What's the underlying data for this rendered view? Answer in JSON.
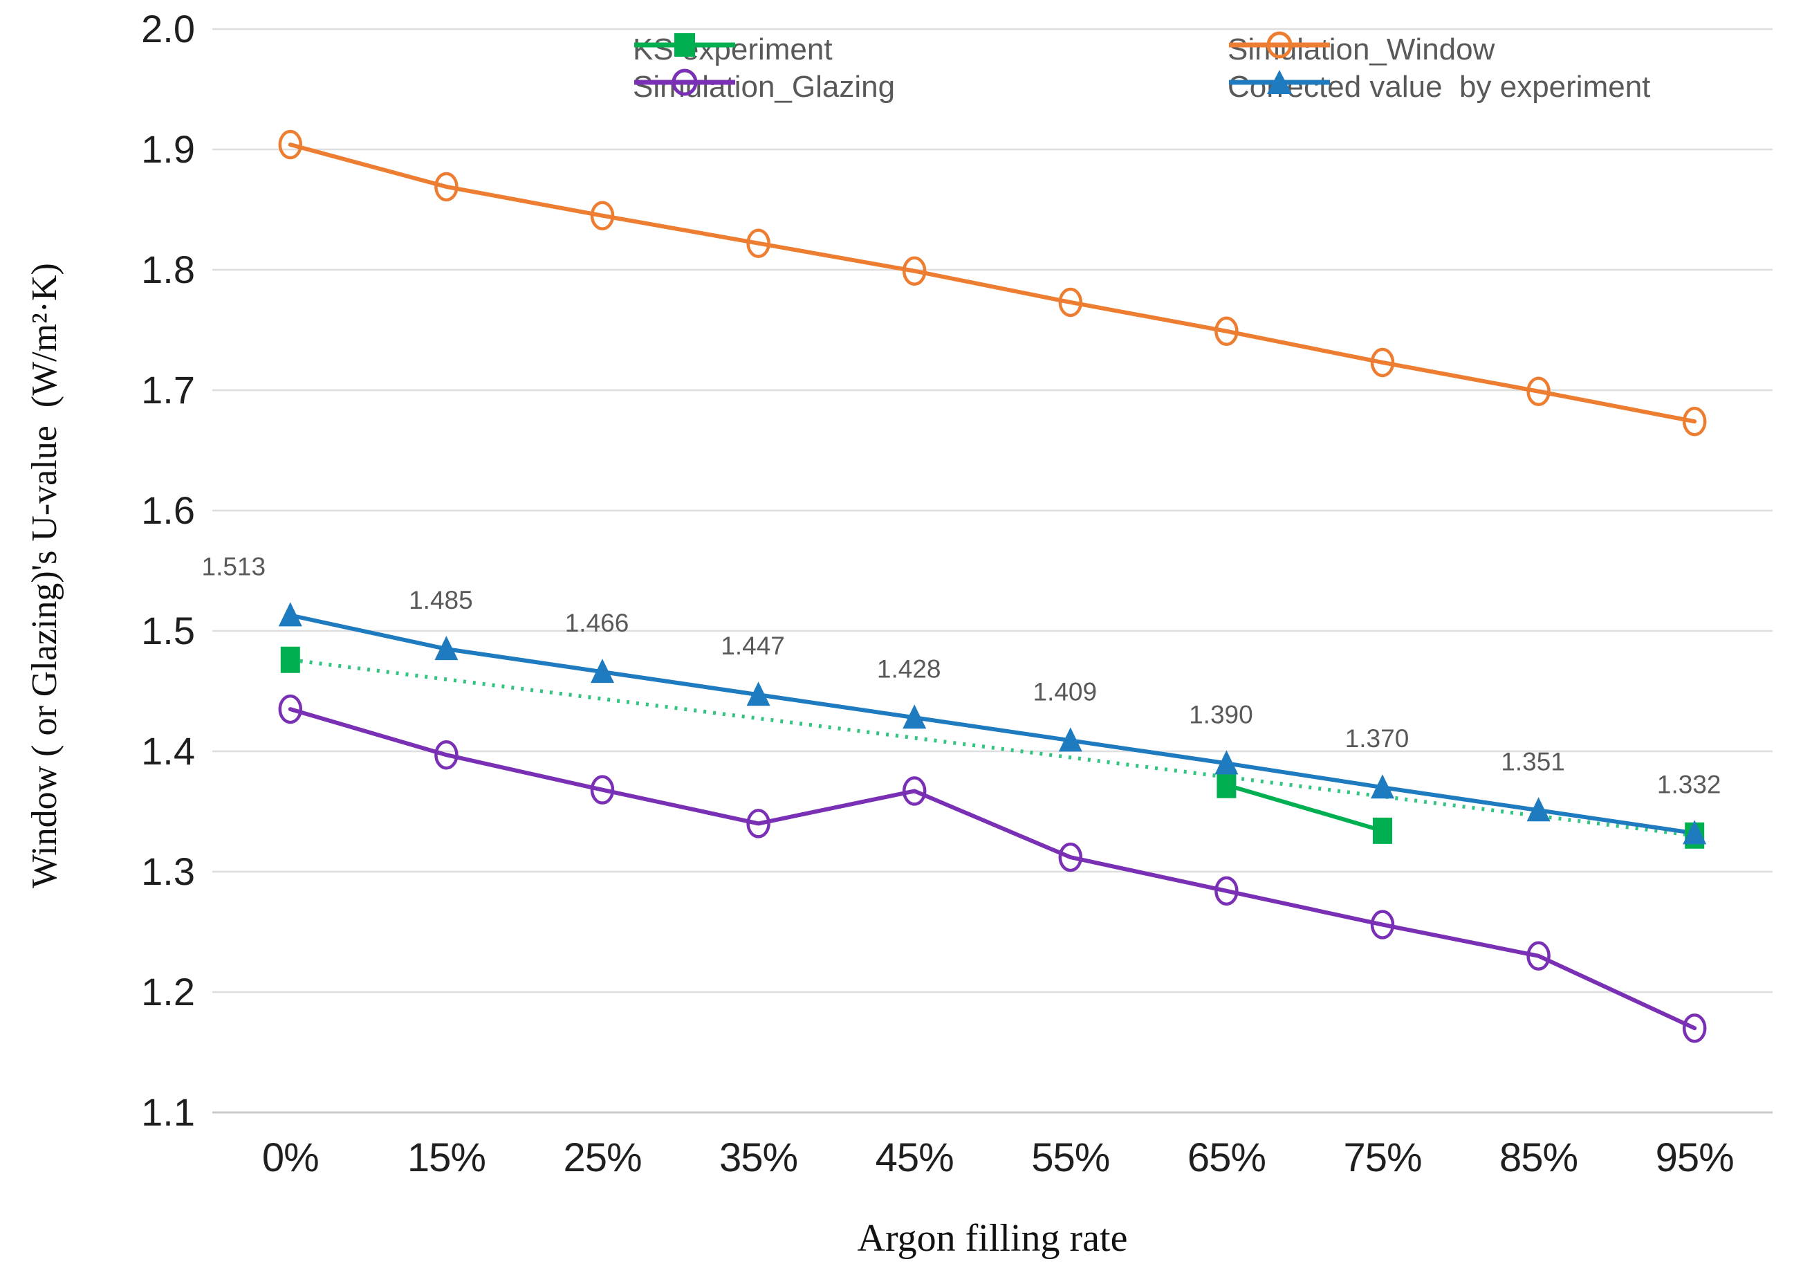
{
  "figure": {
    "background": "#FFFFFF"
  },
  "legend": {
    "text_color": "#595959",
    "items": [
      {
        "label": "KS experiment",
        "series": "ks_experiment",
        "marker": "filled-square",
        "color": "#00B050"
      },
      {
        "label": "Simulation_Window",
        "series": "simulation_window",
        "marker": "open-circle",
        "color": "#ED7D31"
      },
      {
        "label": "Simulation_Glazing",
        "series": "simulation_glazing",
        "marker": "open-circle",
        "color": "#7A30B5"
      },
      {
        "label": "Corrected value  by experiment",
        "series": "corrected_value",
        "marker": "filled-triangle",
        "color": "#1F7BC0"
      }
    ]
  },
  "axes": {
    "y_title": "Window ( or Glazing)'s U-value  (W/m²·K)",
    "x_title": "Argon filling rate",
    "y_ticks": [
      "2.0",
      "1.9",
      "1.8",
      "1.7",
      "1.6",
      "1.5",
      "1.4",
      "1.3",
      "1.2",
      "1.1"
    ],
    "x_ticks": [
      "0%",
      "15%",
      "25%",
      "35%",
      "45%",
      "55%",
      "65%",
      "75%",
      "85%",
      "95%"
    ],
    "grid_color": "#DEDEDE",
    "axis_line_color": "#C9C9C9"
  },
  "chart_data": {
    "type": "line",
    "title": "",
    "xlabel": "Argon filling rate",
    "ylabel": "Window ( or Glazing)'s U-value  (W/m²·K)",
    "categories": [
      "0%",
      "15%",
      "25%",
      "35%",
      "45%",
      "55%",
      "65%",
      "75%",
      "85%",
      "95%"
    ],
    "ylim": [
      1.1,
      2.0
    ],
    "y_tick_step": 0.1,
    "grid": "horizontal",
    "legend_position": "top-inside",
    "series": [
      {
        "name": "KS experiment",
        "key": "ks_experiment",
        "color": "#00B050",
        "marker": "square",
        "line_style": "none",
        "points": [
          {
            "category": "0%",
            "value": 1.476
          },
          {
            "category": "65%",
            "value": 1.372
          },
          {
            "category": "75%",
            "value": 1.334
          },
          {
            "category": "95%",
            "value": 1.33
          }
        ],
        "dotted_trend": {
          "from": {
            "category": "0%",
            "value": 1.476
          },
          "to": {
            "category": "95%",
            "value": 1.33
          },
          "color": "#33C481"
        },
        "solid_segment": {
          "from": {
            "category": "65%",
            "value": 1.372
          },
          "to": {
            "category": "75%",
            "value": 1.334
          }
        }
      },
      {
        "name": "Simulation_Window",
        "key": "simulation_window",
        "color": "#ED7D31",
        "marker": "open-circle",
        "line_style": "solid",
        "values": [
          1.904,
          1.869,
          1.845,
          1.822,
          1.799,
          1.773,
          1.749,
          1.723,
          1.699,
          1.674
        ]
      },
      {
        "name": "Simulation_Glazing",
        "key": "simulation_glazing",
        "color": "#7A30B5",
        "marker": "open-circle",
        "line_style": "solid",
        "values": [
          1.435,
          1.397,
          1.368,
          1.34,
          1.367,
          1.312,
          1.284,
          1.256,
          1.23,
          1.17
        ]
      },
      {
        "name": "Corrected value  by experiment",
        "key": "corrected_value",
        "color": "#1F7BC0",
        "marker": "triangle",
        "line_style": "solid",
        "values": [
          1.513,
          1.485,
          1.466,
          1.447,
          1.428,
          1.409,
          1.39,
          1.37,
          1.351,
          1.332
        ],
        "data_labels": [
          "1.513",
          "1.485",
          "1.466",
          "1.447",
          "1.428",
          "1.409",
          "1.390",
          "1.370",
          "1.351",
          "1.332"
        ],
        "label_color": "#595959"
      }
    ]
  }
}
